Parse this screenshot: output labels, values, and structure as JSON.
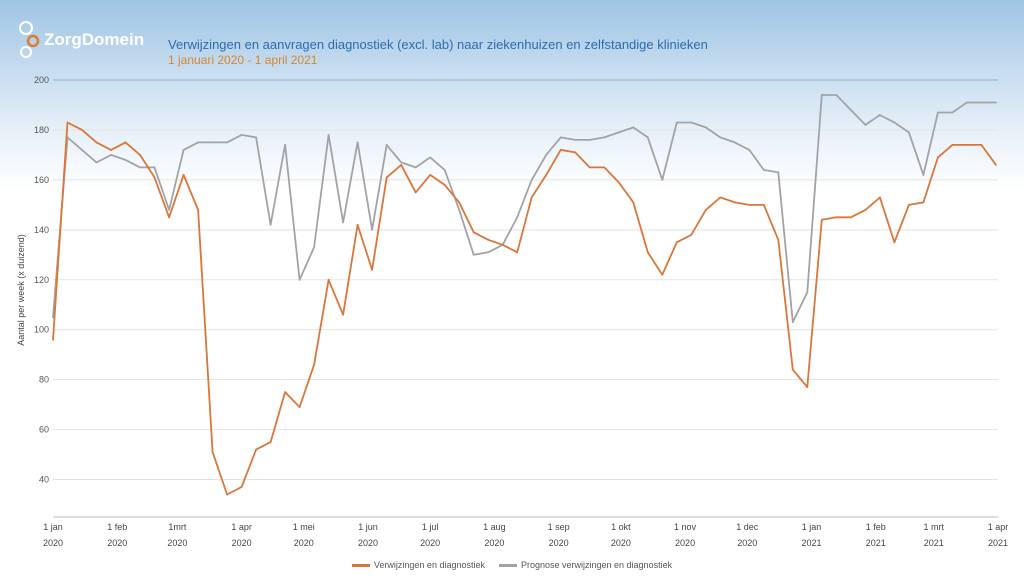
{
  "header": {
    "logo_text": "ZorgDomein",
    "title": "Verwijzingen en aanvragen diagnostiek (excl. lab) naar ziekenhuizen en zelfstandige klinieken",
    "subtitle": "1 januari 2020 - 1 april 2021"
  },
  "chart_data": {
    "type": "line",
    "title": "Verwijzingen en aanvragen diagnostiek (excl. lab) naar ziekenhuizen en zelfstandige klinieken",
    "subtitle": "1 januari 2020 - 1 april 2021",
    "ylabel": "Aantal per week (x duizend)",
    "xlabel": "",
    "ylim": [
      25,
      200
    ],
    "yticks": [
      40,
      60,
      80,
      100,
      120,
      140,
      160,
      180,
      200
    ],
    "grid": true,
    "legend_position": "bottom",
    "x_start": "2020-01-01",
    "x_interval": "week",
    "xtick_labels": [
      [
        "1 jan",
        "2020"
      ],
      [
        "1 feb",
        "2020"
      ],
      [
        "1mrt",
        "2020"
      ],
      [
        "1 apr",
        "2020"
      ],
      [
        "1 mei",
        "2020"
      ],
      [
        "1 jun",
        "2020"
      ],
      [
        "1 jul",
        "2020"
      ],
      [
        "1 aug",
        "2020"
      ],
      [
        "1 sep",
        "2020"
      ],
      [
        "1 okt",
        "2020"
      ],
      [
        "1 nov",
        "2020"
      ],
      [
        "1 dec",
        "2020"
      ],
      [
        "1 jan",
        "2021"
      ],
      [
        "1 feb",
        "2021"
      ],
      [
        "1 mrt",
        "2021"
      ],
      [
        "1 apr",
        "2021"
      ]
    ],
    "xtick_dates": [
      "2020-01-01",
      "2020-02-01",
      "2020-03-01",
      "2020-04-01",
      "2020-05-01",
      "2020-06-01",
      "2020-07-01",
      "2020-08-01",
      "2020-09-01",
      "2020-10-01",
      "2020-11-01",
      "2020-12-01",
      "2021-01-01",
      "2021-02-01",
      "2021-03-01",
      "2021-04-01"
    ],
    "series": [
      {
        "name": "Verwijzingen en diagnostiek",
        "color": "#d9773a",
        "values": [
          96,
          183,
          180,
          175,
          172,
          175,
          170,
          161,
          145,
          162,
          148,
          51,
          34,
          37,
          52,
          55,
          75,
          69,
          86,
          120,
          106,
          142,
          124,
          161,
          166,
          155,
          162,
          158,
          151,
          139,
          136,
          134,
          131,
          153,
          162,
          172,
          171,
          165,
          165,
          159,
          151,
          131,
          122,
          135,
          138,
          148,
          153,
          151,
          150,
          150,
          136,
          84,
          77,
          144,
          145,
          145,
          148,
          153,
          135,
          150,
          151,
          169,
          174,
          174,
          174,
          166
        ]
      },
      {
        "name": "Prognose verwijzingen en diagnostiek",
        "color": "#a3a3a6",
        "values": [
          105,
          177,
          172,
          167,
          170,
          168,
          165,
          165,
          148,
          172,
          175,
          175,
          175,
          178,
          177,
          142,
          174,
          120,
          133,
          178,
          143,
          175,
          140,
          174,
          167,
          165,
          169,
          164,
          148,
          130,
          131,
          134,
          145,
          160,
          170,
          177,
          176,
          176,
          177,
          179,
          181,
          177,
          160,
          183,
          183,
          181,
          177,
          175,
          172,
          164,
          163,
          103,
          115,
          194,
          194,
          188,
          182,
          186,
          183,
          179,
          162,
          187,
          187,
          191,
          191,
          191
        ]
      }
    ]
  }
}
